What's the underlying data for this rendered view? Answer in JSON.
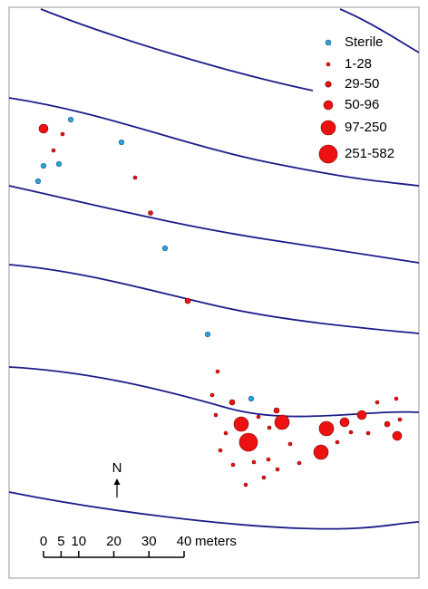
{
  "legend": {
    "items": [
      {
        "label": "Sterile"
      },
      {
        "label": "1-28"
      },
      {
        "label": "29-50"
      },
      {
        "label": "50-96"
      },
      {
        "label": "97-250"
      },
      {
        "label": "251-582"
      }
    ]
  },
  "north_arrow": {
    "label": "N"
  },
  "scale_bar": {
    "ticks": [
      0,
      5,
      10,
      20,
      30,
      40
    ],
    "unit": "meters"
  }
}
